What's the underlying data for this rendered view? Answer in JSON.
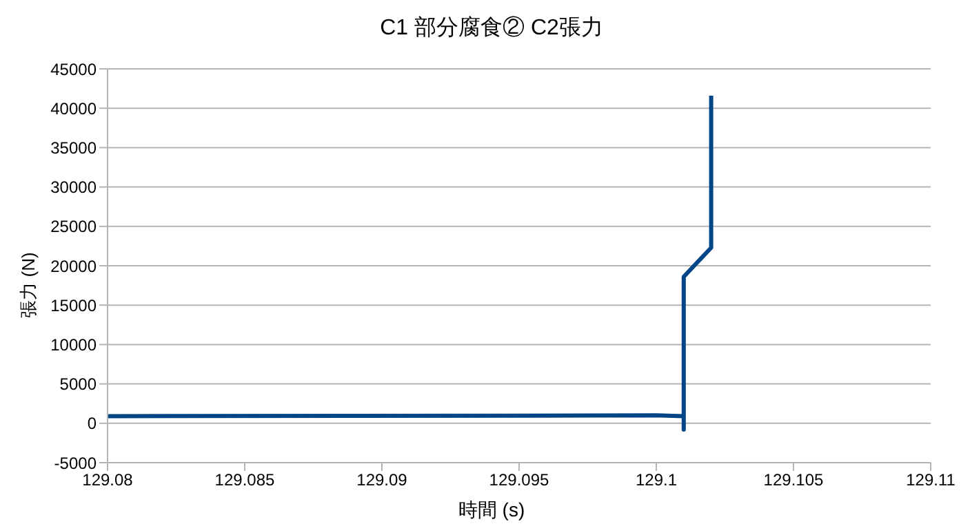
{
  "chart_data": {
    "type": "line",
    "title": "C1  部分腐食②  C2張力",
    "xlabel": "時間 (s)",
    "ylabel": "張力 (N)",
    "x": [
      129.08,
      129.1,
      129.101,
      129.101,
      129.101,
      129.102,
      129.102
    ],
    "series": [
      {
        "color": "#004586",
        "values": [
          900,
          1000,
          900,
          -800,
          18600,
          22300,
          41600
        ]
      }
    ],
    "xlim": [
      129.08,
      129.11
    ],
    "xticks": [
      129.08,
      129.085,
      129.09,
      129.095,
      129.1,
      129.105,
      129.11
    ],
    "ylim": [
      -5000,
      45000
    ],
    "yticks": [
      -5000,
      0,
      5000,
      10000,
      15000,
      20000,
      25000,
      30000,
      35000,
      40000,
      45000
    ],
    "grid": "y",
    "marker": "none",
    "line_style": "solid"
  }
}
